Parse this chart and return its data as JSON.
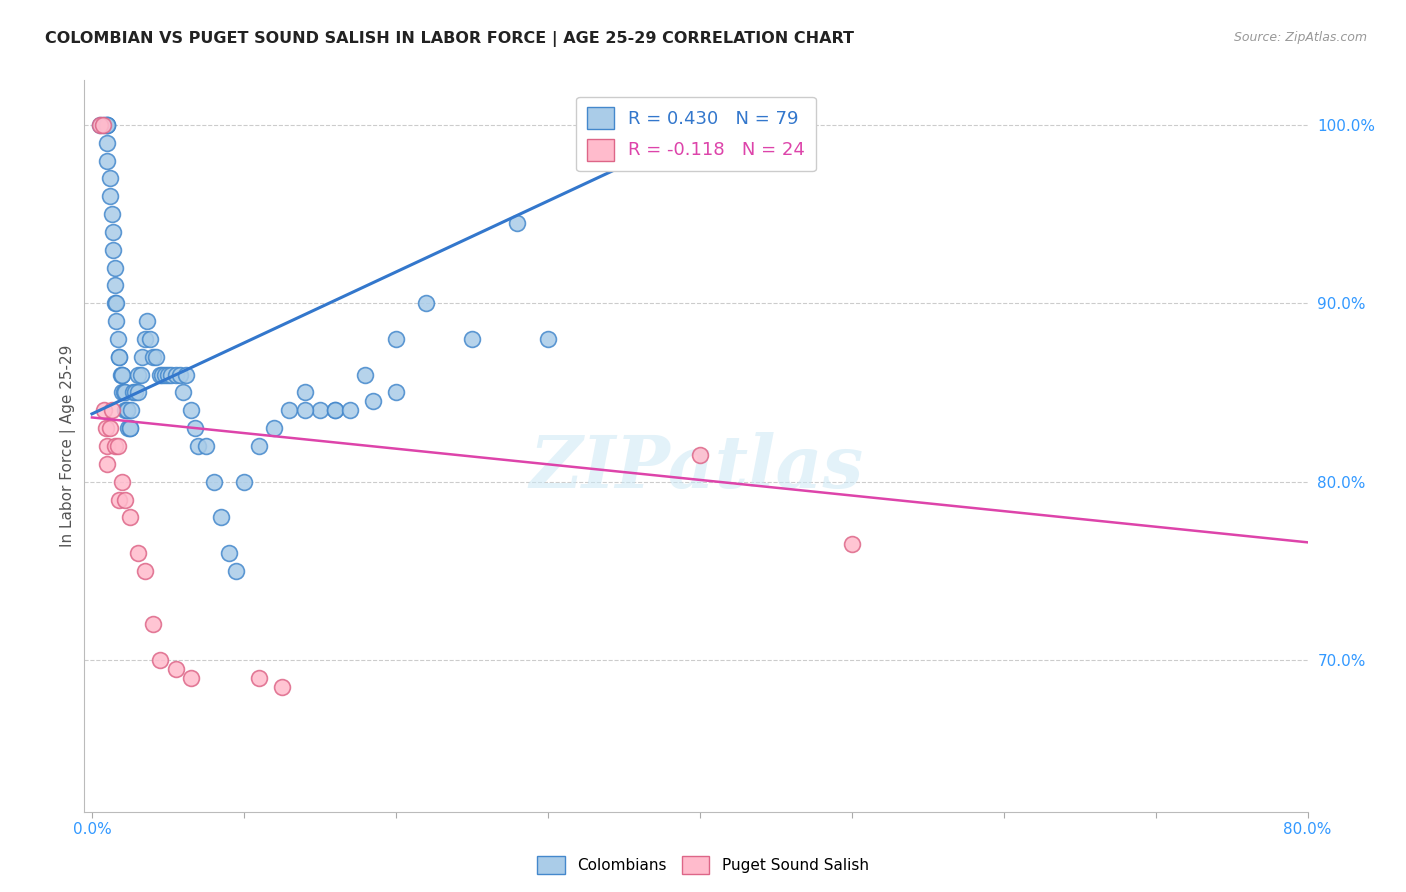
{
  "title": "COLOMBIAN VS PUGET SOUND SALISH IN LABOR FORCE | AGE 25-29 CORRELATION CHART",
  "source": "Source: ZipAtlas.com",
  "ylabel": "In Labor Force | Age 25-29",
  "xlim": [
    -0.005,
    0.8
  ],
  "ylim": [
    0.615,
    1.025
  ],
  "xtick_positions": [
    0.0,
    0.1,
    0.2,
    0.3,
    0.4,
    0.5,
    0.6,
    0.7,
    0.8
  ],
  "xticklabels": [
    "0.0%",
    "",
    "",
    "",
    "",
    "",
    "",
    "",
    "80.0%"
  ],
  "ytick_right_labels": [
    "100.0%",
    "90.0%",
    "80.0%",
    "70.0%"
  ],
  "ytick_right_values": [
    1.0,
    0.9,
    0.8,
    0.7
  ],
  "blue_R": 0.43,
  "blue_N": 79,
  "pink_R": -0.118,
  "pink_N": 24,
  "blue_color": "#aacce8",
  "blue_edge_color": "#4488cc",
  "pink_color": "#ffbbcc",
  "pink_edge_color": "#dd6688",
  "blue_line_color": "#3377cc",
  "pink_line_color": "#dd44aa",
  "watermark": "ZIPatlas",
  "blue_line_x0": 0.0,
  "blue_line_y0": 0.838,
  "blue_line_x1": 0.42,
  "blue_line_y1": 1.005,
  "pink_line_x0": 0.0,
  "pink_line_y0": 0.836,
  "pink_line_x1": 0.8,
  "pink_line_y1": 0.766,
  "blue_x": [
    0.005,
    0.008,
    0.01,
    0.01,
    0.01,
    0.01,
    0.01,
    0.012,
    0.012,
    0.013,
    0.014,
    0.014,
    0.015,
    0.015,
    0.015,
    0.016,
    0.016,
    0.017,
    0.018,
    0.018,
    0.019,
    0.02,
    0.02,
    0.02,
    0.021,
    0.022,
    0.022,
    0.023,
    0.023,
    0.024,
    0.025,
    0.025,
    0.026,
    0.027,
    0.028,
    0.03,
    0.03,
    0.032,
    0.033,
    0.035,
    0.036,
    0.038,
    0.04,
    0.042,
    0.045,
    0.046,
    0.048,
    0.05,
    0.052,
    0.055,
    0.058,
    0.06,
    0.062,
    0.065,
    0.068,
    0.07,
    0.075,
    0.08,
    0.085,
    0.09,
    0.095,
    0.1,
    0.11,
    0.12,
    0.13,
    0.14,
    0.15,
    0.16,
    0.18,
    0.2,
    0.22,
    0.28,
    0.3,
    0.14,
    0.16,
    0.17,
    0.185,
    0.2,
    0.25
  ],
  "blue_y": [
    1.0,
    1.0,
    1.0,
    1.0,
    1.0,
    0.99,
    0.98,
    0.97,
    0.96,
    0.95,
    0.94,
    0.93,
    0.92,
    0.91,
    0.9,
    0.9,
    0.89,
    0.88,
    0.87,
    0.87,
    0.86,
    0.86,
    0.86,
    0.85,
    0.85,
    0.85,
    0.84,
    0.84,
    0.84,
    0.83,
    0.83,
    0.83,
    0.84,
    0.85,
    0.85,
    0.86,
    0.85,
    0.86,
    0.87,
    0.88,
    0.89,
    0.88,
    0.87,
    0.87,
    0.86,
    0.86,
    0.86,
    0.86,
    0.86,
    0.86,
    0.86,
    0.85,
    0.86,
    0.84,
    0.83,
    0.82,
    0.82,
    0.8,
    0.78,
    0.76,
    0.75,
    0.8,
    0.82,
    0.83,
    0.84,
    0.85,
    0.84,
    0.84,
    0.86,
    0.88,
    0.9,
    0.945,
    0.88,
    0.84,
    0.84,
    0.84,
    0.845,
    0.85,
    0.88
  ],
  "pink_x": [
    0.005,
    0.007,
    0.008,
    0.009,
    0.01,
    0.01,
    0.012,
    0.013,
    0.015,
    0.017,
    0.018,
    0.02,
    0.022,
    0.025,
    0.03,
    0.035,
    0.04,
    0.045,
    0.055,
    0.065,
    0.11,
    0.125,
    0.4,
    0.5
  ],
  "pink_y": [
    1.0,
    1.0,
    0.84,
    0.83,
    0.82,
    0.81,
    0.83,
    0.84,
    0.82,
    0.82,
    0.79,
    0.8,
    0.79,
    0.78,
    0.76,
    0.75,
    0.72,
    0.7,
    0.695,
    0.69,
    0.69,
    0.685,
    0.815,
    0.765
  ]
}
